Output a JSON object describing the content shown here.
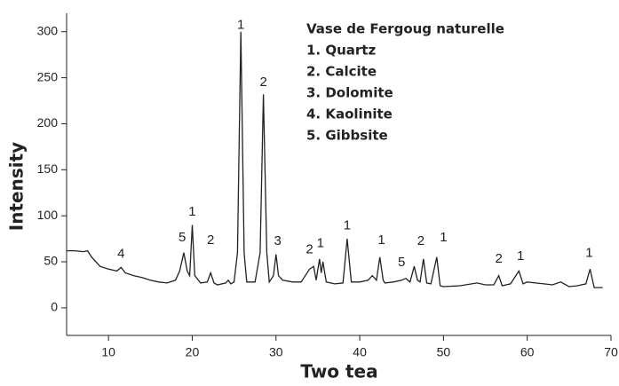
{
  "chart_data": {
    "type": "line",
    "xlabel": "Two tea",
    "ylabel": "Intensity",
    "legend_title": "Vase de Fergoug naturelle",
    "legend_items": [
      "1. Quartz",
      "2. Calcite",
      "3. Dolomite",
      "4. Kaolinite",
      "5. Gibbsite"
    ],
    "color": "#222222",
    "xlim": [
      5,
      70
    ],
    "ylim": [
      -30,
      320
    ],
    "xticks": [
      10,
      20,
      30,
      40,
      50,
      60,
      70
    ],
    "yticks": [
      0,
      50,
      100,
      150,
      200,
      250,
      300
    ],
    "x": [
      5,
      6,
      7,
      7.5,
      8,
      9,
      10,
      11,
      11.5,
      12,
      13,
      14,
      15,
      16,
      17,
      18,
      18.5,
      19,
      19.4,
      19.7,
      20,
      20.3,
      21,
      21.8,
      22.2,
      22.6,
      23,
      24,
      24.3,
      24.6,
      25,
      25.4,
      25.8,
      26.2,
      26.5,
      27.5,
      28.1,
      28.5,
      28.9,
      29.2,
      29.7,
      30,
      30.3,
      30.8,
      32,
      33,
      34,
      34.5,
      34.8,
      35.2,
      35.4,
      35.6,
      36,
      37,
      38,
      38.5,
      39,
      40,
      41,
      41.5,
      42,
      42.4,
      42.8,
      43,
      44,
      45,
      45.5,
      46,
      46.5,
      46.9,
      47.2,
      47.6,
      48,
      48.5,
      49.2,
      49.6,
      50,
      52,
      54,
      55,
      56,
      56.6,
      57,
      58,
      59,
      59.5,
      60,
      61,
      62,
      63,
      64,
      65,
      66,
      67,
      67.5,
      68,
      69
    ],
    "values": [
      62,
      62,
      61,
      62,
      55,
      45,
      42,
      40,
      44,
      38,
      35,
      33,
      30,
      28,
      27,
      30,
      40,
      60,
      40,
      35,
      90,
      35,
      27,
      28,
      38,
      27,
      25,
      27,
      30,
      26,
      28,
      60,
      300,
      60,
      28,
      28,
      60,
      232,
      60,
      28,
      35,
      58,
      35,
      30,
      28,
      28,
      42,
      45,
      30,
      53,
      38,
      50,
      28,
      26,
      27,
      75,
      28,
      28,
      30,
      35,
      30,
      55,
      30,
      27,
      28,
      30,
      32,
      28,
      45,
      30,
      28,
      53,
      27,
      26,
      55,
      24,
      23,
      24,
      27,
      25,
      25,
      35,
      24,
      26,
      40,
      26,
      28,
      27,
      26,
      25,
      28,
      23,
      24,
      26,
      42,
      22,
      22
    ],
    "annotations": [
      {
        "text": "4",
        "x": 11.5,
        "y": 58
      },
      {
        "text": "5",
        "x": 18.8,
        "y": 76
      },
      {
        "text": "1",
        "x": 20,
        "y": 104
      },
      {
        "text": "2",
        "x": 22.2,
        "y": 73
      },
      {
        "text": "1",
        "x": 25.8,
        "y": 307
      },
      {
        "text": "2",
        "x": 28.5,
        "y": 245
      },
      {
        "text": "3",
        "x": 30.2,
        "y": 72
      },
      {
        "text": "2",
        "x": 34,
        "y": 63
      },
      {
        "text": "1",
        "x": 35.3,
        "y": 70
      },
      {
        "text": "1",
        "x": 38.5,
        "y": 89
      },
      {
        "text": "1",
        "x": 42.6,
        "y": 73
      },
      {
        "text": "5",
        "x": 45,
        "y": 49
      },
      {
        "text": "2",
        "x": 47.3,
        "y": 72
      },
      {
        "text": "1",
        "x": 50,
        "y": 76
      },
      {
        "text": "2",
        "x": 56.6,
        "y": 53
      },
      {
        "text": "1",
        "x": 59.2,
        "y": 56
      },
      {
        "text": "1",
        "x": 67.4,
        "y": 59
      }
    ]
  }
}
